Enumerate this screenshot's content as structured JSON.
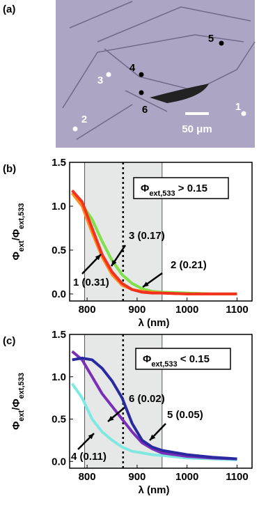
{
  "image_panel": {
    "label": "(a)",
    "scale_bar": "50 μm",
    "points": [
      {
        "label": "1",
        "color": "#ffffff"
      },
      {
        "label": "2",
        "color": "#ffffff"
      },
      {
        "label": "3",
        "color": "#ffffff"
      },
      {
        "label": "4",
        "color": "#000000"
      },
      {
        "label": "5",
        "color": "#000000"
      },
      {
        "label": "6",
        "color": "#000000"
      }
    ]
  },
  "chart_data": [
    {
      "type": "line",
      "panel_label": "(b)",
      "xlabel": "λ (nm)",
      "ylabel": [
        {
          "text": "Φ"
        },
        {
          "text": "ext",
          "sub": true
        },
        {
          "text": "/Φ"
        },
        {
          "text": "ext,533",
          "sub": true
        }
      ],
      "note": [
        {
          "text": "Φ"
        },
        {
          "text": "ext,533",
          "sub": true
        },
        {
          "text": " > 0.15"
        }
      ],
      "shaded_range": [
        795,
        950
      ],
      "dotted_x": 872,
      "xlim": [
        765,
        1130
      ],
      "xticks": [
        800,
        900,
        1000,
        1100
      ],
      "ylim": [
        -0.08,
        1.5
      ],
      "yticks": [
        {
          "value": 0,
          "label": "0.0"
        },
        0.5,
        {
          "value": 1,
          "label": "1.0"
        },
        1.5
      ],
      "x": [
        770,
        790,
        810,
        830,
        850,
        870,
        890,
        910,
        930,
        950,
        1000,
        1050,
        1100
      ],
      "series": [
        {
          "name": "3 (0.17)",
          "color": "#7fe04a",
          "values": [
            1.15,
            1.02,
            0.85,
            0.6,
            0.38,
            0.22,
            0.12,
            0.06,
            0.03,
            0.02,
            0.01,
            0,
            0
          ]
        },
        {
          "name": "2 (0.21)",
          "color": "#ff8a1e",
          "values": [
            1.15,
            1.0,
            0.7,
            0.42,
            0.22,
            0.1,
            0.05,
            0.03,
            0.02,
            0.01,
            0,
            0,
            0
          ]
        },
        {
          "name": "1 (0.31)",
          "color": "#f2311e",
          "values": [
            1.18,
            1.05,
            0.75,
            0.45,
            0.25,
            0.12,
            0.05,
            0.02,
            0.01,
            0.01,
            0,
            0,
            0
          ]
        }
      ]
    },
    {
      "type": "line",
      "panel_label": "(c)",
      "xlabel": "λ (nm)",
      "ylabel": [
        {
          "text": "Φ"
        },
        {
          "text": "ext",
          "sub": true
        },
        {
          "text": "/Φ"
        },
        {
          "text": "ext,533",
          "sub": true
        }
      ],
      "note": [
        {
          "text": "Φ"
        },
        {
          "text": "ext,533",
          "sub": true
        },
        {
          "text": " < 0.15"
        }
      ],
      "shaded_range": [
        795,
        950
      ],
      "dotted_x": 872,
      "xlim": [
        765,
        1130
      ],
      "xticks": [
        800,
        900,
        1000,
        1100
      ],
      "ylim": [
        -0.08,
        1.5
      ],
      "yticks": [
        {
          "value": 0,
          "label": "0.0"
        },
        0.5,
        {
          "value": 1,
          "label": "1.0"
        },
        1.5
      ],
      "x": [
        770,
        790,
        810,
        830,
        850,
        870,
        890,
        910,
        930,
        950,
        1000,
        1050,
        1100
      ],
      "series": [
        {
          "name": "4 (0.11)",
          "color": "#7fe8e0",
          "values": [
            0.92,
            0.75,
            0.5,
            0.35,
            0.25,
            0.17,
            0.12,
            0.1,
            0.08,
            0.07,
            0.04,
            0.03,
            0.02
          ]
        },
        {
          "name": "6 (0.02)",
          "color": "#7a2fb8",
          "values": [
            1.3,
            1.2,
            1.0,
            0.8,
            0.65,
            0.5,
            0.35,
            0.22,
            0.15,
            0.1,
            0.06,
            0.04,
            0.03
          ]
        },
        {
          "name": "5 (0.05)",
          "color": "#2a2aa0",
          "values": [
            1.2,
            1.22,
            1.2,
            1.1,
            0.95,
            0.75,
            0.45,
            0.25,
            0.17,
            0.13,
            0.08,
            0.05,
            0.03
          ]
        }
      ]
    }
  ]
}
